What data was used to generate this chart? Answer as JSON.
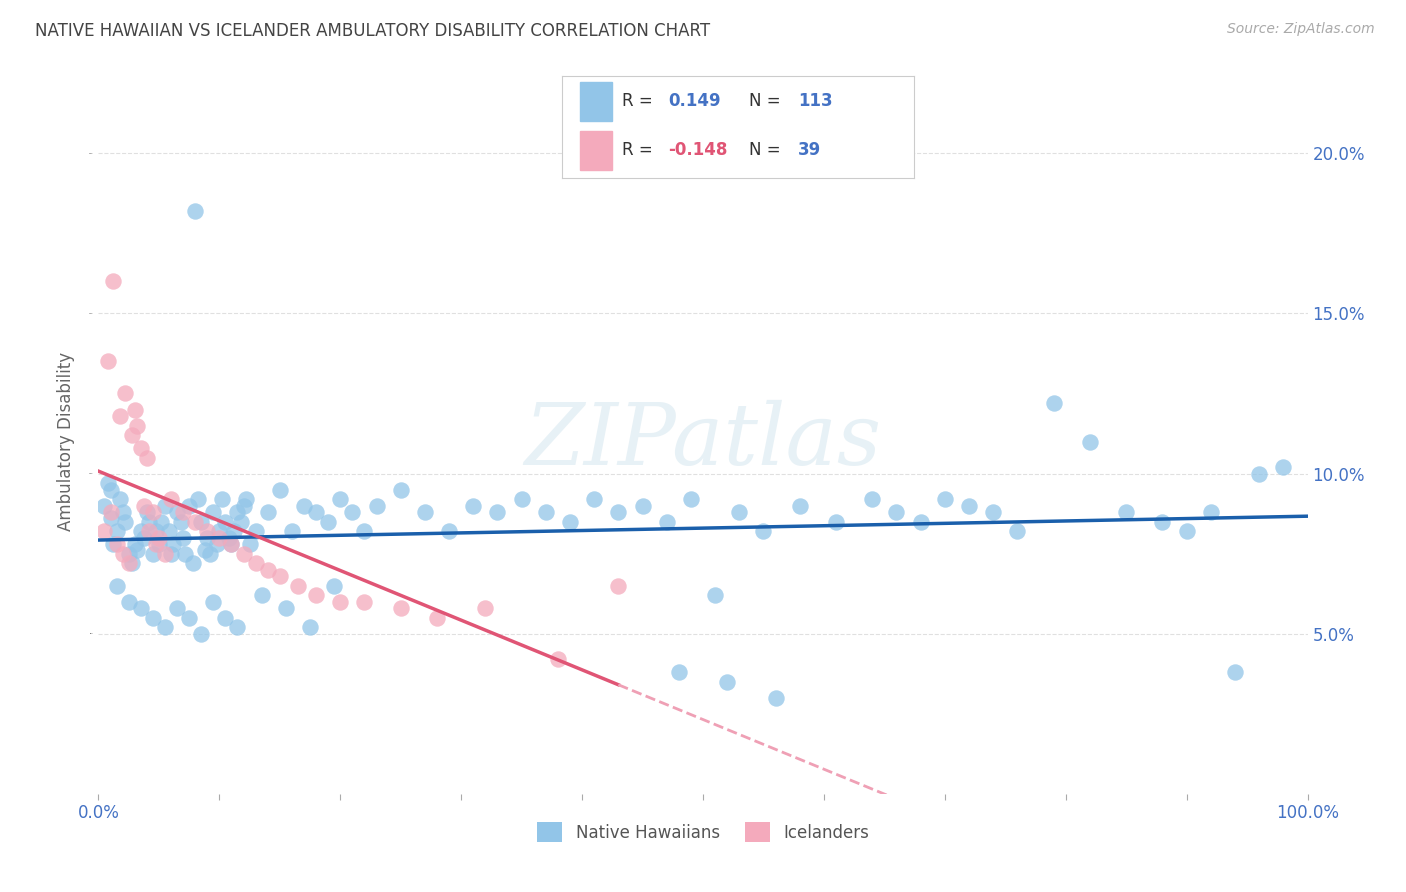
{
  "title": "NATIVE HAWAIIAN VS ICELANDER AMBULATORY DISABILITY CORRELATION CHART",
  "source": "Source: ZipAtlas.com",
  "ylabel": "Ambulatory Disability",
  "xlim": [
    0.0,
    1.0
  ],
  "ylim": [
    0.0,
    0.22
  ],
  "xticks": [
    0.0,
    0.1,
    0.2,
    0.3,
    0.4,
    0.5,
    0.6,
    0.7,
    0.8,
    0.9,
    1.0
  ],
  "xticklabels_show": [
    "0.0%",
    "",
    "",
    "",
    "",
    "",
    "",
    "",
    "",
    "",
    "100.0%"
  ],
  "yticks": [
    0.05,
    0.1,
    0.15,
    0.2
  ],
  "yticklabels": [
    "5.0%",
    "10.0%",
    "15.0%",
    "20.0%"
  ],
  "watermark": "ZIPatlas",
  "blue_color": "#92C5E8",
  "pink_color": "#F4AABC",
  "blue_line_color": "#1A5FAB",
  "pink_line_color": "#E05575",
  "pink_dash_color": "#EFA0B5",
  "title_color": "#444444",
  "axis_label_color": "#666666",
  "tick_color": "#4472C4",
  "grid_color": "#E0E0E0",
  "r_label_color": "#4472C4",
  "r_value_blue": "#4472C4",
  "r_value_pink": "#E05575",
  "nh_x": [
    0.005,
    0.01,
    0.015,
    0.01,
    0.02,
    0.012,
    0.025,
    0.018,
    0.008,
    0.022,
    0.03,
    0.028,
    0.035,
    0.032,
    0.04,
    0.038,
    0.045,
    0.042,
    0.05,
    0.048,
    0.055,
    0.052,
    0.06,
    0.058,
    0.065,
    0.062,
    0.07,
    0.068,
    0.075,
    0.072,
    0.08,
    0.078,
    0.085,
    0.082,
    0.09,
    0.088,
    0.095,
    0.092,
    0.1,
    0.098,
    0.105,
    0.102,
    0.11,
    0.108,
    0.115,
    0.112,
    0.12,
    0.118,
    0.125,
    0.122,
    0.13,
    0.14,
    0.15,
    0.16,
    0.17,
    0.18,
    0.19,
    0.2,
    0.21,
    0.22,
    0.23,
    0.25,
    0.27,
    0.29,
    0.31,
    0.33,
    0.35,
    0.37,
    0.39,
    0.41,
    0.43,
    0.45,
    0.47,
    0.49,
    0.51,
    0.53,
    0.55,
    0.58,
    0.61,
    0.64,
    0.66,
    0.68,
    0.7,
    0.72,
    0.74,
    0.76,
    0.79,
    0.82,
    0.85,
    0.88,
    0.9,
    0.92,
    0.94,
    0.96,
    0.98,
    0.015,
    0.025,
    0.035,
    0.045,
    0.055,
    0.065,
    0.075,
    0.085,
    0.095,
    0.105,
    0.115,
    0.135,
    0.155,
    0.175,
    0.195,
    0.48,
    0.52,
    0.56
  ],
  "nh_y": [
    0.09,
    0.086,
    0.082,
    0.095,
    0.088,
    0.078,
    0.075,
    0.092,
    0.097,
    0.085,
    0.078,
    0.072,
    0.082,
    0.076,
    0.088,
    0.08,
    0.075,
    0.085,
    0.078,
    0.082,
    0.09,
    0.085,
    0.075,
    0.082,
    0.088,
    0.078,
    0.08,
    0.085,
    0.09,
    0.075,
    0.182,
    0.072,
    0.085,
    0.092,
    0.08,
    0.076,
    0.088,
    0.075,
    0.082,
    0.078,
    0.085,
    0.092,
    0.078,
    0.08,
    0.088,
    0.082,
    0.09,
    0.085,
    0.078,
    0.092,
    0.082,
    0.088,
    0.095,
    0.082,
    0.09,
    0.088,
    0.085,
    0.092,
    0.088,
    0.082,
    0.09,
    0.095,
    0.088,
    0.082,
    0.09,
    0.088,
    0.092,
    0.088,
    0.085,
    0.092,
    0.088,
    0.09,
    0.085,
    0.092,
    0.062,
    0.088,
    0.082,
    0.09,
    0.085,
    0.092,
    0.088,
    0.085,
    0.092,
    0.09,
    0.088,
    0.082,
    0.122,
    0.11,
    0.088,
    0.085,
    0.082,
    0.088,
    0.038,
    0.1,
    0.102,
    0.065,
    0.06,
    0.058,
    0.055,
    0.052,
    0.058,
    0.055,
    0.05,
    0.06,
    0.055,
    0.052,
    0.062,
    0.058,
    0.052,
    0.065,
    0.038,
    0.035,
    0.03
  ],
  "icel_x": [
    0.005,
    0.01,
    0.008,
    0.015,
    0.012,
    0.02,
    0.018,
    0.025,
    0.022,
    0.03,
    0.028,
    0.035,
    0.032,
    0.04,
    0.038,
    0.045,
    0.042,
    0.05,
    0.048,
    0.055,
    0.06,
    0.07,
    0.08,
    0.09,
    0.1,
    0.11,
    0.12,
    0.13,
    0.14,
    0.15,
    0.165,
    0.18,
    0.2,
    0.22,
    0.25,
    0.28,
    0.32,
    0.38,
    0.43
  ],
  "icel_y": [
    0.082,
    0.088,
    0.135,
    0.078,
    0.16,
    0.075,
    0.118,
    0.072,
    0.125,
    0.12,
    0.112,
    0.108,
    0.115,
    0.105,
    0.09,
    0.088,
    0.082,
    0.08,
    0.078,
    0.075,
    0.092,
    0.088,
    0.085,
    0.082,
    0.08,
    0.078,
    0.075,
    0.072,
    0.07,
    0.068,
    0.065,
    0.062,
    0.06,
    0.06,
    0.058,
    0.055,
    0.058,
    0.042,
    0.065
  ]
}
